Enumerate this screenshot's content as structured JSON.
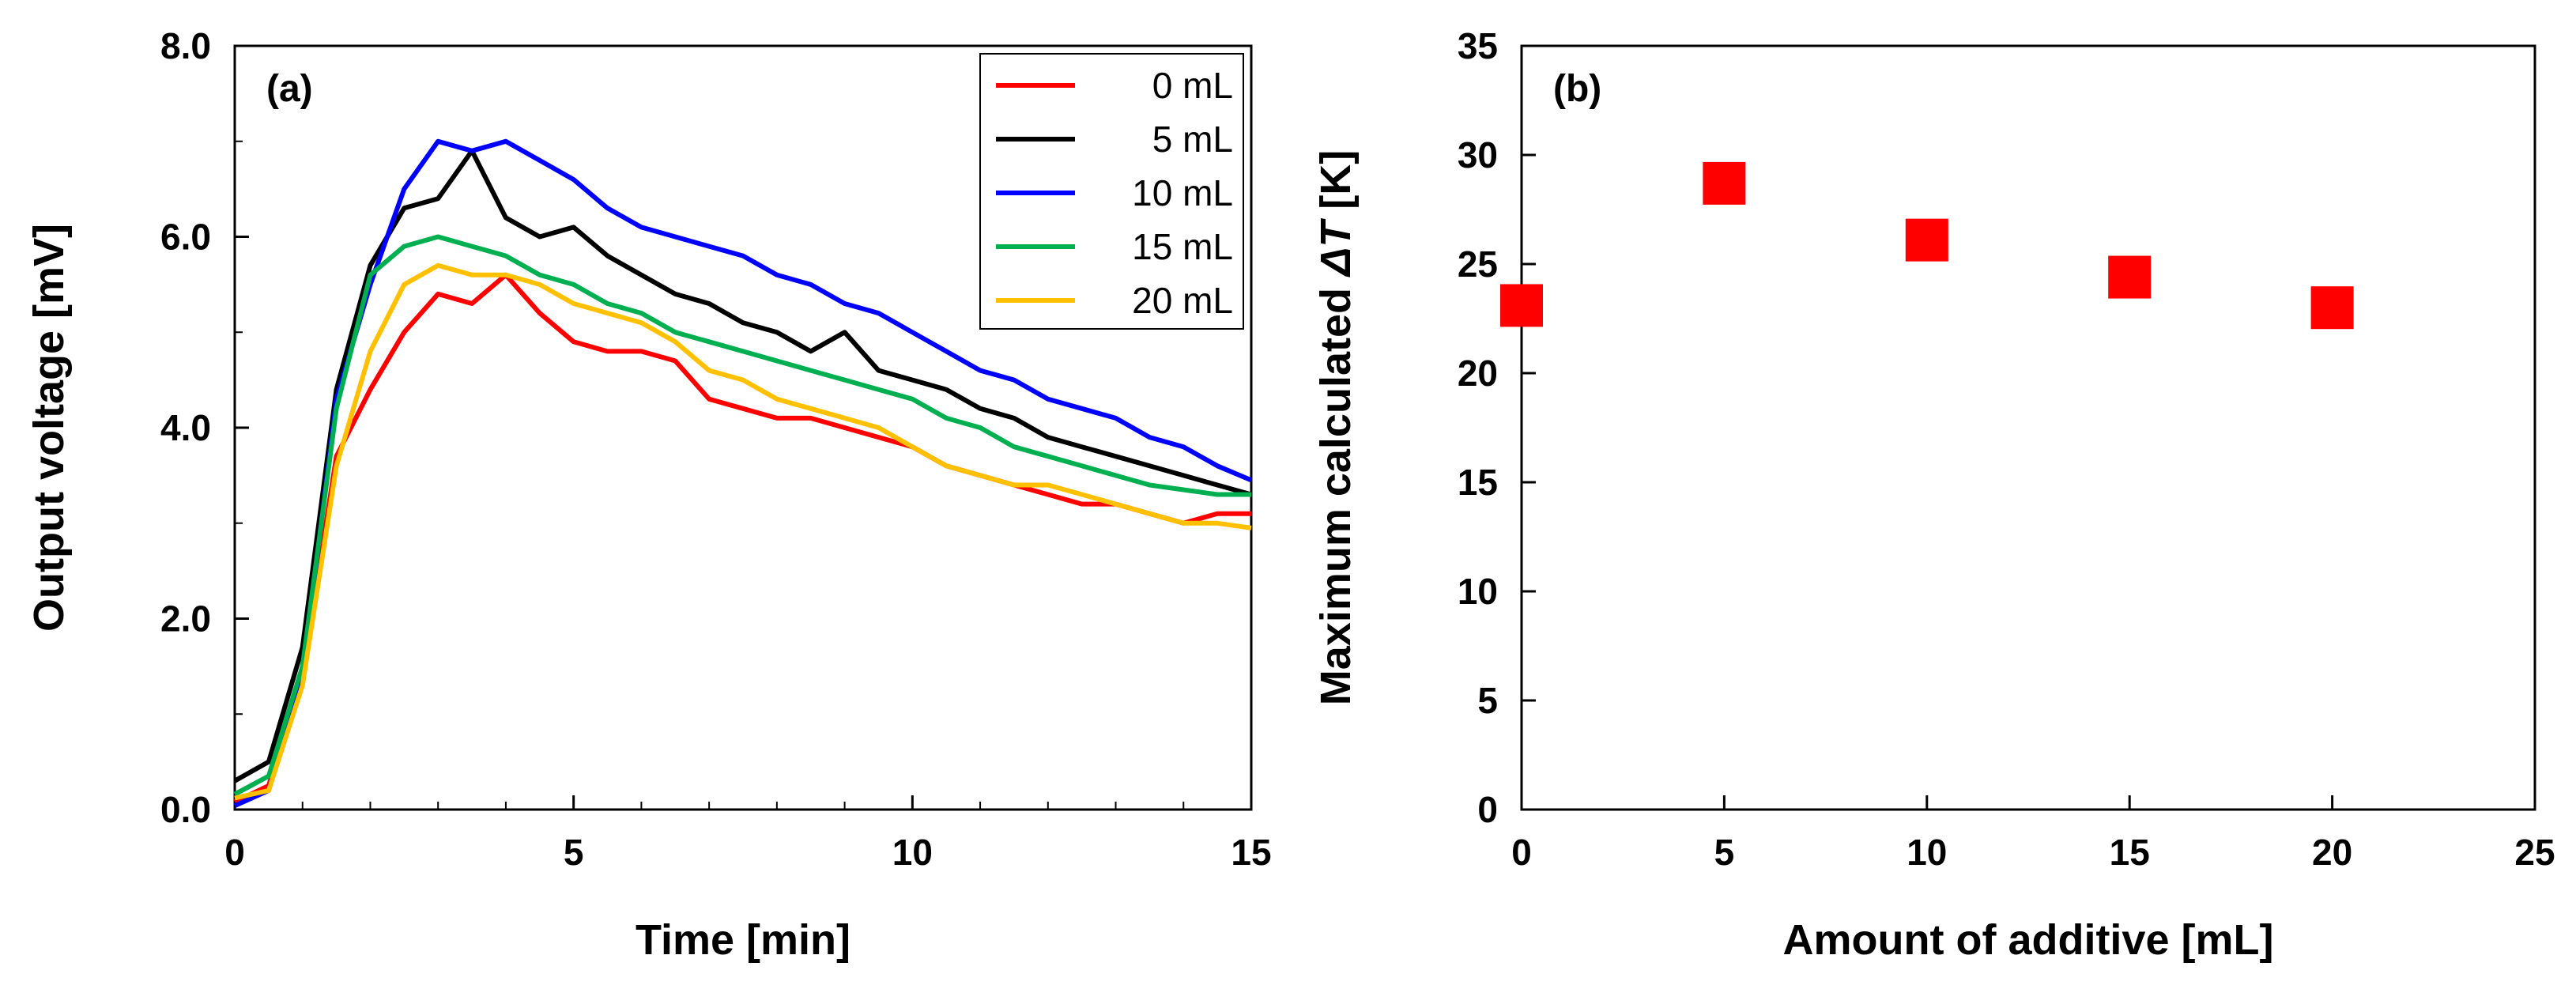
{
  "chart_data": [
    {
      "type": "line",
      "panel_label": "(a)",
      "xlabel": "Time [min]",
      "ylabel": "Output voltage [mV]",
      "xlim": [
        0,
        15
      ],
      "ylim": [
        0,
        8
      ],
      "x_ticks": [
        0,
        5,
        10,
        15
      ],
      "x_tick_labels": [
        "0",
        "5",
        "10",
        "15"
      ],
      "y_ticks": [
        0,
        2,
        4,
        6,
        8
      ],
      "y_tick_labels": [
        "0.0",
        "2.0",
        "4.0",
        "6.0",
        "8.0"
      ],
      "grid": false,
      "legend_position": "top-right",
      "series": [
        {
          "name": " 0 mL",
          "color": "#ff0000",
          "x": [
            0,
            0.5,
            1,
            1.5,
            2,
            2.5,
            3,
            3.5,
            4,
            4.5,
            5,
            5.5,
            6,
            6.5,
            7,
            7.5,
            8,
            8.5,
            9,
            9.5,
            10,
            10.5,
            11,
            11.5,
            12,
            12.5,
            13,
            13.5,
            14,
            14.5,
            15
          ],
          "values": [
            0.08,
            0.25,
            1.4,
            3.7,
            4.4,
            5.0,
            5.4,
            5.3,
            5.6,
            5.2,
            4.9,
            4.8,
            4.8,
            4.7,
            4.3,
            4.2,
            4.1,
            4.1,
            4.0,
            3.9,
            3.8,
            3.6,
            3.5,
            3.4,
            3.3,
            3.2,
            3.2,
            3.1,
            3.0,
            3.1,
            3.1
          ]
        },
        {
          "name": " 5 mL",
          "color": "#000000",
          "x": [
            0,
            0.5,
            1,
            1.5,
            2,
            2.5,
            3,
            3.5,
            4,
            4.5,
            5,
            5.5,
            6,
            6.5,
            7,
            7.5,
            8,
            8.5,
            9,
            9.5,
            10,
            10.5,
            11,
            11.5,
            12,
            12.5,
            13,
            13.5,
            14,
            14.5,
            15
          ],
          "values": [
            0.3,
            0.5,
            1.7,
            4.4,
            5.7,
            6.3,
            6.4,
            6.9,
            6.2,
            6.0,
            6.1,
            5.8,
            5.6,
            5.4,
            5.3,
            5.1,
            5.0,
            4.8,
            5.0,
            4.6,
            4.5,
            4.4,
            4.2,
            4.1,
            3.9,
            3.8,
            3.7,
            3.6,
            3.5,
            3.4,
            3.3
          ]
        },
        {
          "name": "10 mL",
          "color": "#0000ff",
          "x": [
            0,
            0.5,
            1,
            1.5,
            2,
            2.5,
            3,
            3.5,
            4,
            4.5,
            5,
            5.5,
            6,
            6.5,
            7,
            7.5,
            8,
            8.5,
            9,
            9.5,
            10,
            10.5,
            11,
            11.5,
            12,
            12.5,
            13,
            13.5,
            14,
            14.5,
            15
          ],
          "values": [
            0.04,
            0.2,
            1.4,
            4.3,
            5.5,
            6.5,
            7.0,
            6.9,
            7.0,
            6.8,
            6.6,
            6.3,
            6.1,
            6.0,
            5.9,
            5.8,
            5.6,
            5.5,
            5.3,
            5.2,
            5.0,
            4.8,
            4.6,
            4.5,
            4.3,
            4.2,
            4.1,
            3.9,
            3.8,
            3.6,
            3.45
          ]
        },
        {
          "name": "15 mL",
          "color": "#00b050",
          "x": [
            0,
            0.5,
            1,
            1.5,
            2,
            2.5,
            3,
            3.5,
            4,
            4.5,
            5,
            5.5,
            6,
            6.5,
            7,
            7.5,
            8,
            8.5,
            9,
            9.5,
            10,
            10.5,
            11,
            11.5,
            12,
            12.5,
            13,
            13.5,
            14,
            14.5,
            15
          ],
          "values": [
            0.16,
            0.35,
            1.5,
            4.2,
            5.6,
            5.9,
            6.0,
            5.9,
            5.8,
            5.6,
            5.5,
            5.3,
            5.2,
            5.0,
            4.9,
            4.8,
            4.7,
            4.6,
            4.5,
            4.4,
            4.3,
            4.1,
            4.0,
            3.8,
            3.7,
            3.6,
            3.5,
            3.4,
            3.35,
            3.3,
            3.3
          ]
        },
        {
          "name": "20 mL",
          "color": "#ffc000",
          "x": [
            0,
            0.5,
            1,
            1.5,
            2,
            2.5,
            3,
            3.5,
            4,
            4.5,
            5,
            5.5,
            6,
            6.5,
            7,
            7.5,
            8,
            8.5,
            9,
            9.5,
            10,
            10.5,
            11,
            11.5,
            12,
            12.5,
            13,
            13.5,
            14,
            14.5,
            15
          ],
          "values": [
            0.12,
            0.2,
            1.3,
            3.6,
            4.8,
            5.5,
            5.7,
            5.6,
            5.6,
            5.5,
            5.3,
            5.2,
            5.1,
            4.9,
            4.6,
            4.5,
            4.3,
            4.2,
            4.1,
            4.0,
            3.8,
            3.6,
            3.5,
            3.4,
            3.4,
            3.3,
            3.2,
            3.1,
            3.0,
            3.0,
            2.95
          ]
        }
      ]
    },
    {
      "type": "scatter",
      "panel_label": "(b)",
      "xlabel": "Amount of additive [mL]",
      "ylabel_prefix": "Maximum calculated ",
      "ylabel_italic": "ΔT",
      "ylabel_suffix": " [K]",
      "xlim": [
        0,
        25
      ],
      "ylim": [
        0,
        35
      ],
      "x_ticks": [
        0,
        5,
        10,
        15,
        20,
        25
      ],
      "x_tick_labels": [
        "0",
        "5",
        "10",
        "15",
        "20",
        "25"
      ],
      "y_ticks": [
        0,
        5,
        10,
        15,
        20,
        25,
        30,
        35
      ],
      "y_tick_labels": [
        "0",
        "5",
        "10",
        "15",
        "20",
        "25",
        "30",
        "35"
      ],
      "grid": false,
      "marker": "square",
      "color": "#ff0000",
      "x": [
        0,
        5,
        10,
        15,
        20
      ],
      "values": [
        23.1,
        28.7,
        26.1,
        24.4,
        23.0
      ]
    }
  ]
}
